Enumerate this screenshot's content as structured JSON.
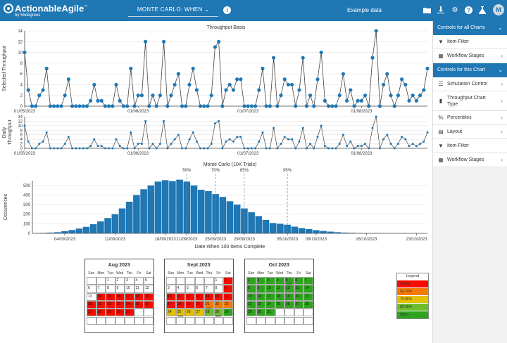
{
  "app": {
    "name": "ActionableAgile",
    "trademark": "™",
    "subtitle": "by 55degrees",
    "mode": "MONTE CARLO: WHEN",
    "dataset": "Example data",
    "avatar": "M"
  },
  "toolbar_icons": [
    "folder-icon",
    "download-icon",
    "gear-icon",
    "help-icon",
    "flask-icon"
  ],
  "sidebar": {
    "section1": {
      "title": "Controls for all Charts"
    },
    "items1": [
      {
        "label": "Item Filter",
        "icon": "filter-icon"
      },
      {
        "label": "Workflow Stages",
        "icon": "table-icon"
      }
    ],
    "section2": {
      "title": "Controls for this Chart"
    },
    "items2": [
      {
        "label": "Simulation Control",
        "icon": "sliders-icon"
      },
      {
        "label": "Throughput Chart Type",
        "icon": "bar-chart-icon"
      },
      {
        "label": "Percentiles",
        "icon": "percent-icon"
      },
      {
        "label": "Layout",
        "icon": "layout-icon"
      },
      {
        "label": "Item Filter",
        "icon": "filter-icon"
      },
      {
        "label": "Workflow Stages",
        "icon": "table-icon"
      }
    ]
  },
  "chart_data": [
    {
      "type": "line",
      "title": "Throughput Basis",
      "ylabel": "Selected Throughput",
      "ylim": [
        0,
        14
      ],
      "yticks": [
        0,
        2,
        4,
        6,
        8,
        10,
        12,
        14
      ],
      "xticks": [
        "01/05/2023",
        "01/06/2023",
        "01/07/2023",
        "01/08/2023"
      ],
      "values": [
        10,
        3,
        0,
        0,
        2,
        3,
        7,
        0,
        0,
        0,
        0,
        2,
        5,
        0,
        0,
        0,
        0,
        0,
        1,
        4,
        1,
        1,
        0,
        0,
        0,
        4,
        1,
        0,
        0,
        7,
        0,
        2,
        2,
        12,
        0,
        2,
        0,
        2,
        12,
        0,
        2,
        4,
        6,
        0,
        0,
        4,
        7,
        3,
        0,
        0,
        0,
        2,
        11,
        12,
        0,
        3,
        4,
        3,
        5,
        5,
        0,
        0,
        0,
        0,
        3,
        7,
        0,
        0,
        9,
        0,
        2,
        5,
        4,
        4,
        0,
        3,
        9,
        0,
        2,
        0,
        5,
        10,
        1,
        0,
        0,
        0,
        2,
        6,
        1,
        3,
        0,
        1,
        1,
        2,
        0,
        9,
        14,
        0,
        4,
        6,
        2,
        0,
        2,
        5,
        4,
        1,
        2,
        1,
        2,
        3,
        7
      ]
    },
    {
      "type": "line",
      "title": "",
      "ylabel": "Daily Throughput",
      "ylim": [
        0,
        14
      ],
      "yticks": [
        0,
        2,
        4,
        6,
        8,
        10,
        12,
        14
      ],
      "xticks": [
        "01/05/2023",
        "01/06/2023",
        "01/07/2023",
        "01/08/2023"
      ],
      "values": [
        10,
        3,
        0,
        0,
        2,
        3,
        7,
        0,
        0,
        0,
        0,
        2,
        5,
        0,
        0,
        0,
        0,
        0,
        1,
        4,
        1,
        1,
        0,
        0,
        0,
        4,
        1,
        0,
        0,
        7,
        0,
        2,
        2,
        12,
        0,
        2,
        0,
        2,
        12,
        0,
        2,
        4,
        6,
        0,
        0,
        4,
        7,
        3,
        0,
        0,
        0,
        2,
        11,
        12,
        0,
        3,
        4,
        3,
        5,
        5,
        0,
        0,
        0,
        0,
        3,
        7,
        0,
        0,
        9,
        0,
        2,
        5,
        4,
        4,
        0,
        3,
        9,
        0,
        2,
        0,
        5,
        10,
        1,
        0,
        0,
        0,
        2,
        6,
        1,
        3,
        0,
        1,
        1,
        2,
        0,
        9,
        14,
        0,
        4,
        6,
        2,
        0,
        2,
        5,
        4,
        1,
        2,
        1,
        2,
        3,
        7
      ]
    },
    {
      "type": "bar",
      "title": "Monte Carlo (10K Trials)",
      "xlabel": "Date When 100 Items Complete",
      "ylabel": "Occurences",
      "ylim": [
        0,
        550
      ],
      "yticks": [
        0,
        100,
        200,
        300,
        400,
        500
      ],
      "xticks": [
        "04/09/2023",
        "11/09/2023",
        "18/09/2023",
        "21/09/2023",
        "25/09/2023",
        "29/09/2023",
        "05/10/2023",
        "09/10/2023",
        "16/10/2023",
        "23/10/2023"
      ],
      "xtick_index": [
        4,
        11,
        18,
        21,
        25,
        29,
        35,
        39,
        46,
        53
      ],
      "values": [
        3,
        5,
        8,
        12,
        22,
        35,
        50,
        68,
        95,
        125,
        160,
        200,
        260,
        330,
        400,
        460,
        500,
        540,
        555,
        545,
        560,
        540,
        500,
        455,
        440,
        410,
        380,
        335,
        300,
        260,
        220,
        180,
        140,
        108,
        100,
        90,
        70,
        55,
        44,
        33,
        25,
        18,
        12,
        8,
        6,
        4,
        3,
        2,
        2,
        1,
        1,
        1,
        0,
        0,
        0
      ],
      "percentiles": [
        {
          "label": "50%",
          "index": 21
        },
        {
          "label": "70%",
          "index": 25
        },
        {
          "label": "85%",
          "index": 29
        },
        {
          "label": "95%",
          "index": 35
        }
      ]
    }
  ],
  "calendar": {
    "weekdays": [
      "Sun",
      "Mon",
      "Tue",
      "Wed",
      "Thu",
      "Fri",
      "Sat"
    ],
    "months": [
      {
        "title": "Aug 2023",
        "start": 2,
        "days": 31,
        "colors": {
          "14": "red",
          "15": "red",
          "16": "red",
          "17": "red",
          "18": "red",
          "19": "red",
          "20": "red",
          "21": "red",
          "22": "red",
          "23": "red",
          "24": "red",
          "25": "red",
          "26": "red",
          "27": "red",
          "28": "red",
          "29": "red",
          "30": "red",
          "31": "red"
        },
        "pct": {}
      },
      {
        "title": "Sept 2023",
        "start": 5,
        "days": 30,
        "colors": {
          "2": "red",
          "9": "red",
          "10": "red",
          "11": "red",
          "12": "red",
          "13": "red",
          "14": "red",
          "15": "red",
          "16": "red",
          "17": "red",
          "18": "red",
          "19": "red",
          "20": "red",
          "21": "orange",
          "22": "orange",
          "23": "orange",
          "24": "yellow",
          "25": "yellow",
          "26": "yellow",
          "27": "yellow",
          "28": "ygreen",
          "29": "ygreen",
          "30": "green"
        },
        "pct": {
          "21": "50%",
          "25": "70%",
          "29": "85%"
        }
      },
      {
        "title": "Oct 2023",
        "start": 0,
        "days": 31,
        "colors": {
          "1": "green",
          "2": "green",
          "3": "green",
          "4": "green",
          "5": "green",
          "6": "green",
          "7": "green",
          "8": "green",
          "9": "green",
          "10": "green",
          "11": "green",
          "12": "green",
          "13": "green",
          "14": "green",
          "15": "green",
          "16": "green",
          "17": "green",
          "18": "green",
          "19": "green",
          "20": "green",
          "21": "green",
          "22": "green",
          "23": "green",
          "24": "green",
          "25": "green",
          "26": "green",
          "27": "green",
          "28": "green",
          "29": "green",
          "30": "green",
          "31": "green"
        },
        "pct": {
          "5": "95%"
        }
      }
    ]
  },
  "legend": {
    "title": "Legend",
    "items": [
      {
        "label": "0-50%",
        "color": "#f50d00"
      },
      {
        "label": "50-70%",
        "color": "#f57a00"
      },
      {
        "label": "70-85%",
        "color": "#e3c000"
      },
      {
        "label": "85-95%",
        "color": "#6dbe2a"
      },
      {
        "label": "95%+",
        "color": "#2ea41e"
      }
    ]
  },
  "colors": {
    "accent": "#1f77b4",
    "series": "#1f77b4",
    "red": "#f50d00",
    "orange": "#f57a00",
    "yellow": "#e3c000",
    "ygreen": "#6dbe2a",
    "green": "#2ea41e"
  }
}
